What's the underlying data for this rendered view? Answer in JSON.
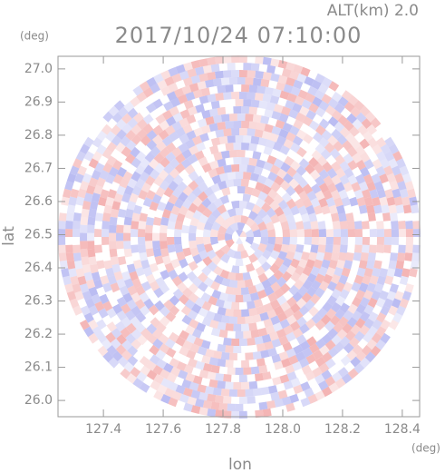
{
  "chart_data": {
    "type": "radar-ppi",
    "title": "2017/10/24 07:10:00",
    "subtitle": "ALT(km) 2.0",
    "y_unit": "(deg)",
    "x_unit": "(deg)",
    "xlabel": "lon",
    "ylabel": "lat",
    "xlim": [
      127.248,
      128.458
    ],
    "ylim": [
      25.951,
      27.038
    ],
    "xticks": [
      127.4,
      127.6,
      127.8,
      {
        "value": 128,
        "label": "128.0"
      },
      128.2,
      128.4
    ],
    "yticks": [
      {
        "value": 26,
        "label": "26.0"
      },
      26.1,
      26.2,
      26.3,
      26.4,
      26.5,
      26.6,
      26.7,
      26.8,
      26.9,
      {
        "value": 27,
        "label": "27.0"
      }
    ]
  }
}
